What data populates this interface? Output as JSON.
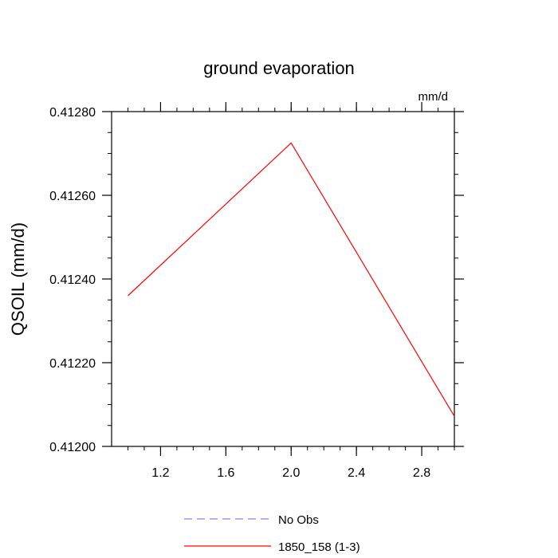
{
  "chart_data": {
    "type": "line",
    "title": "ground evaporation",
    "units_label": "mm/d",
    "ylabel": "QSOIL  (mm/d)",
    "xlabel": "",
    "xlim": [
      0.9,
      3.0
    ],
    "ylim": [
      0.412,
      0.4128
    ],
    "x_ticks": [
      1.2,
      1.6,
      2.0,
      2.4,
      2.8
    ],
    "x_tick_labels": [
      "1.2",
      "1.6",
      "2.0",
      "2.4",
      "2.8"
    ],
    "y_ticks": [
      0.412,
      0.4122,
      0.4124,
      0.4126,
      0.4128
    ],
    "y_tick_labels": [
      "0.41200",
      "0.41220",
      "0.41240",
      "0.41260",
      "0.41280"
    ],
    "grid": false,
    "legend_position": "bottom-center",
    "series": [
      {
        "name": "1850_158 (1-3)",
        "color": "#ff0000",
        "dash": "solid",
        "x": [
          1.0,
          2.0,
          3.0
        ],
        "y": [
          0.41236,
          0.412725,
          0.412072
        ]
      }
    ],
    "legend": [
      {
        "label": "No Obs",
        "color": "#8080ff",
        "dash": "dashed"
      },
      {
        "label": "1850_158 (1-3)",
        "color": "#ff0000",
        "dash": "solid"
      }
    ]
  }
}
